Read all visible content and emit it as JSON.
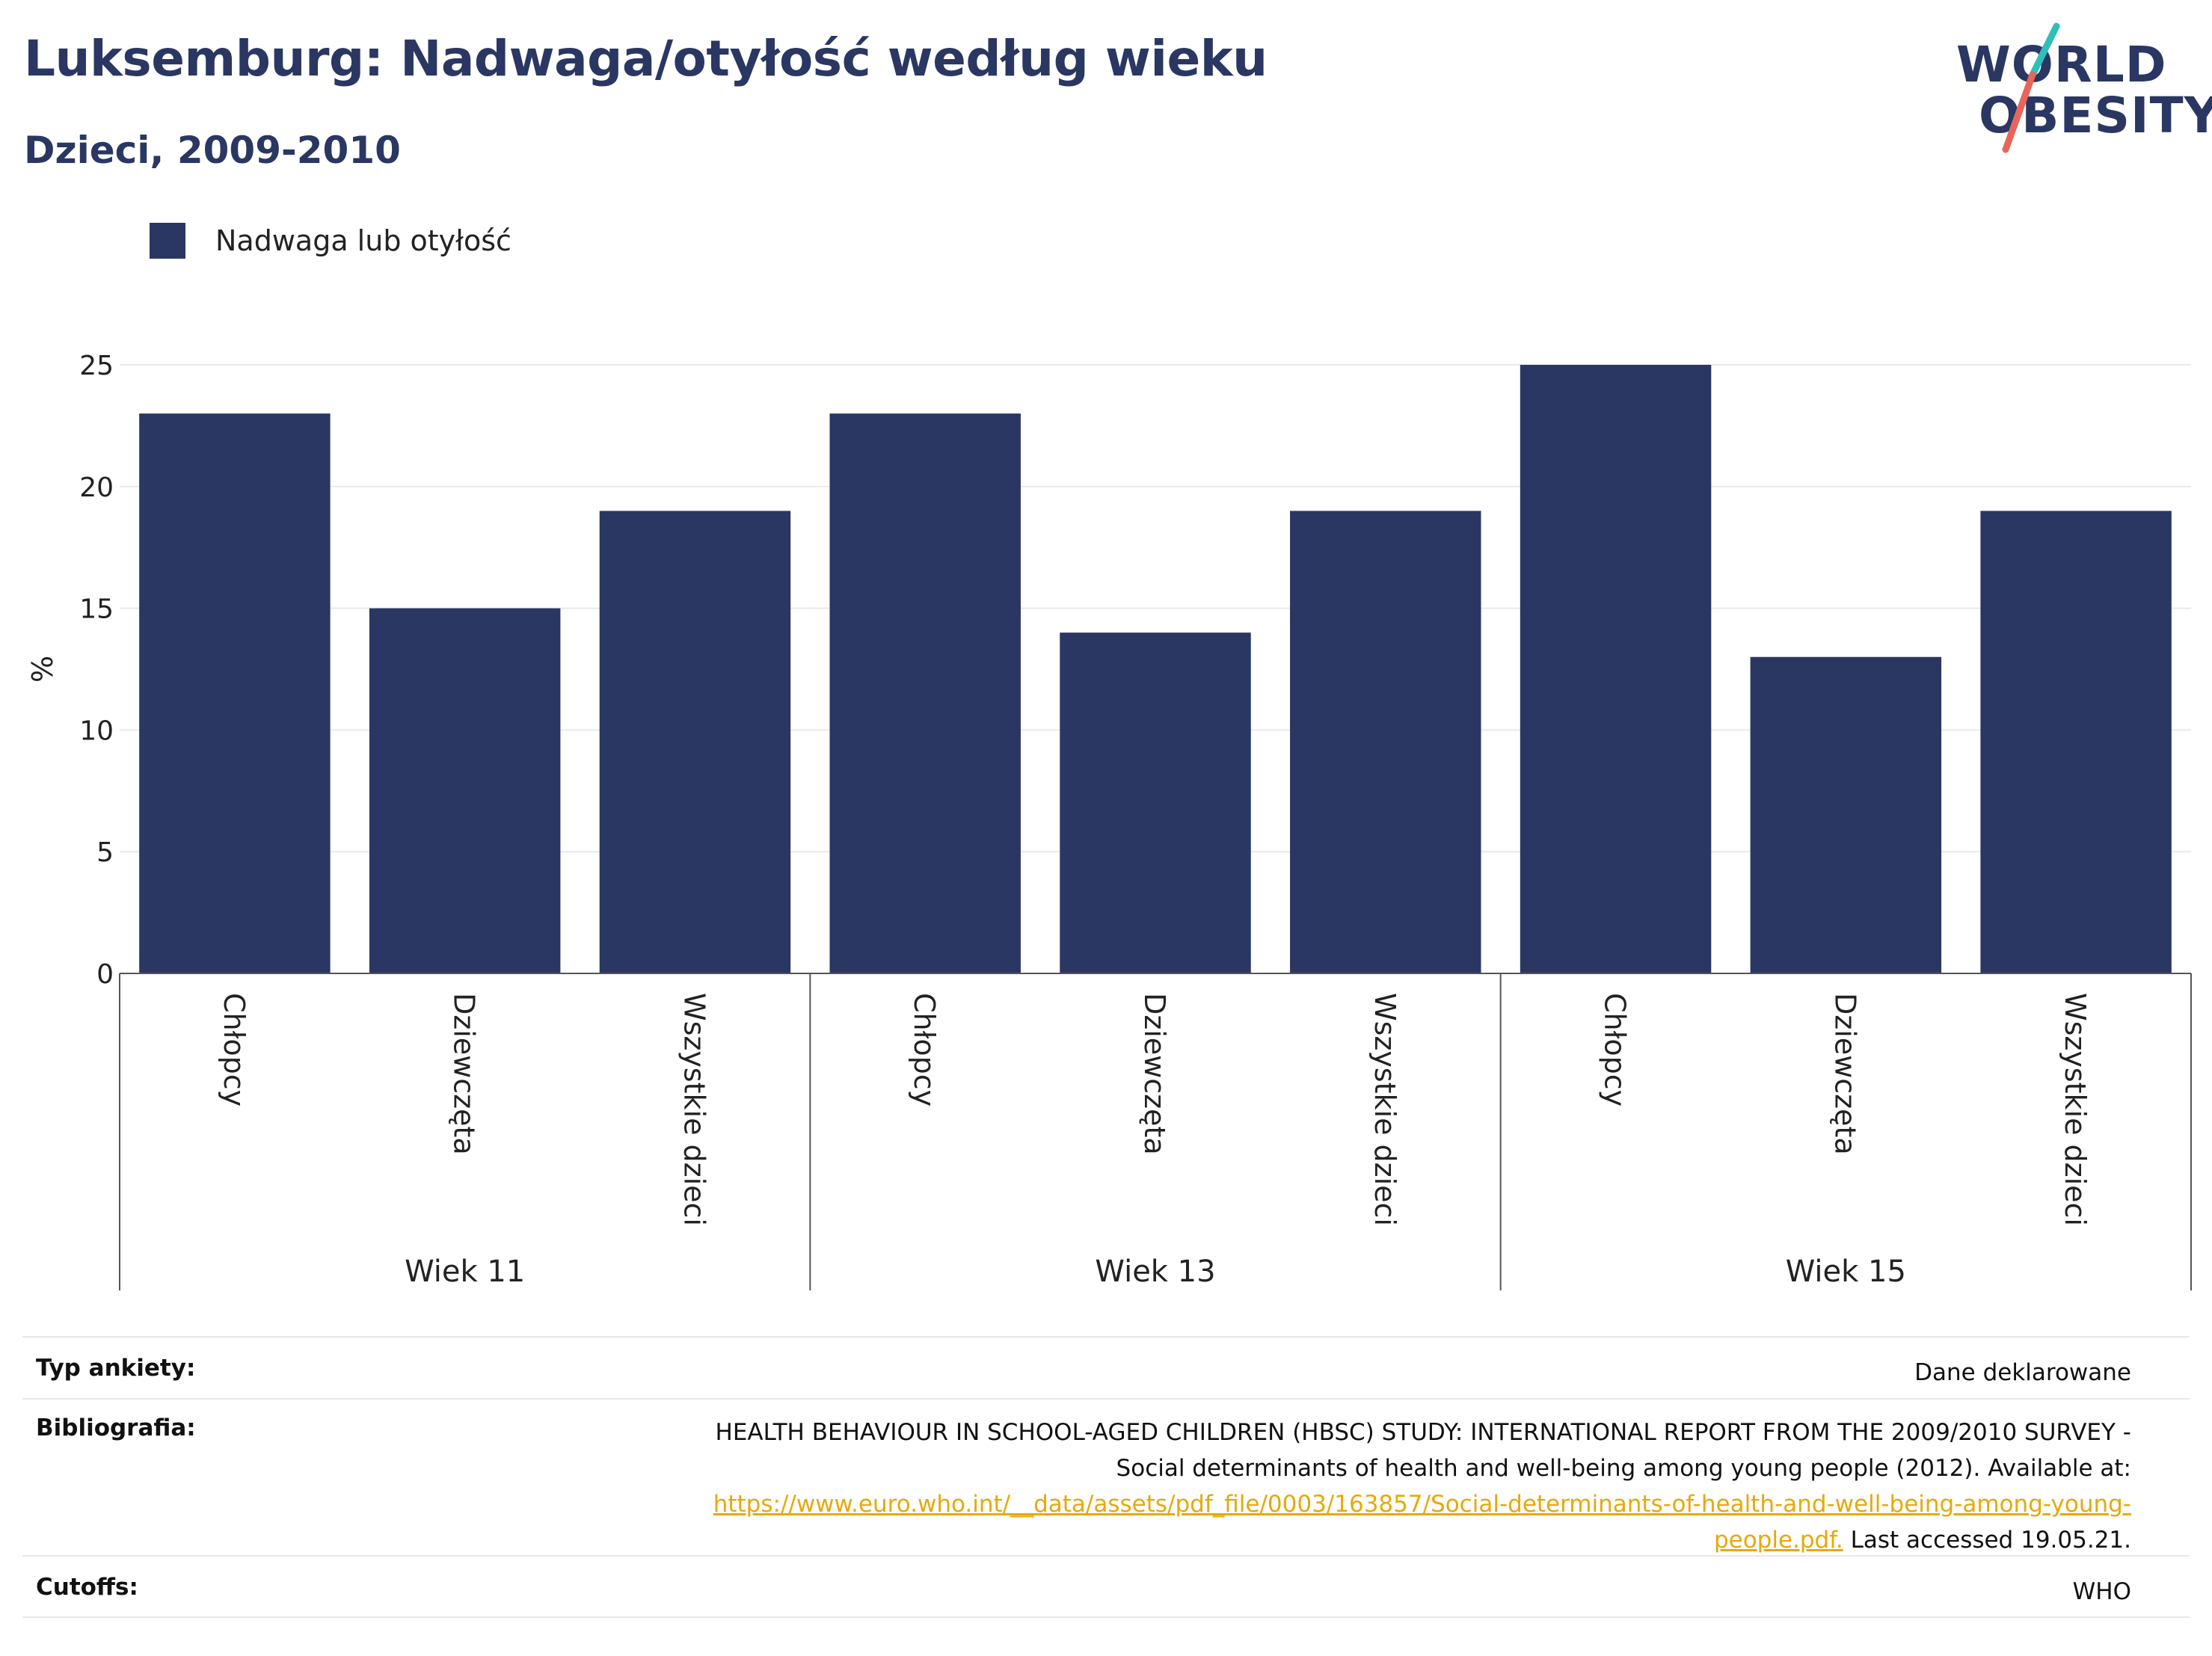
{
  "header": {
    "title": "Luksemburg: Nadwaga/otyłość według wieku",
    "subtitle": "Dzieci, 2009-2010"
  },
  "logo": {
    "line1": "WORLD",
    "line2": "OBESITY",
    "accent_colors": [
      "#2fbfb8",
      "#e8655a"
    ]
  },
  "legend": {
    "label": "Nadwaga lub otyłość",
    "color": "#2a3762"
  },
  "chart_data": {
    "type": "bar",
    "ylabel": "%",
    "ylim": [
      0,
      25
    ],
    "yticks": [
      0,
      5,
      10,
      15,
      20,
      25
    ],
    "grid": true,
    "bar_color": "#2a3762",
    "groups": [
      "Wiek 11",
      "Wiek 13",
      "Wiek 15"
    ],
    "categories": [
      "Chłopcy",
      "Dziewczęta",
      "Wszystkie dzieci",
      "Chłopcy",
      "Dziewczęta",
      "Wszystkie dzieci",
      "Chłopcy",
      "Dziewczęta",
      "Wszystkie dzieci"
    ],
    "series": [
      {
        "name": "Nadwaga lub otyłość",
        "values": [
          23,
          15,
          19,
          23,
          14,
          19,
          25,
          13,
          19
        ]
      }
    ]
  },
  "info": {
    "survey_label": "Typ ankiety:",
    "survey_value": "Dane deklarowane",
    "biblio_label": "Bibliografia:",
    "biblio_line1": "HEALTH BEHAVIOUR IN SCHOOL-AGED CHILDREN (HBSC) STUDY: INTERNATIONAL REPORT FROM THE 2009/2010 SURVEY -",
    "biblio_line2": "Social determinants of health and well-being among young people (2012). Available at:",
    "biblio_link_line1": "https://www.euro.who.int/__data/assets/pdf_file/0003/163857/Social-determinants-of-health-and-well-being-among-young-",
    "biblio_link_line2": "people.pdf.",
    "biblio_tail": " Last accessed 19.05.21.",
    "cutoffs_label": "Cutoffs:",
    "cutoffs_value": "WHO",
    "link_color": "#e8a80c"
  }
}
